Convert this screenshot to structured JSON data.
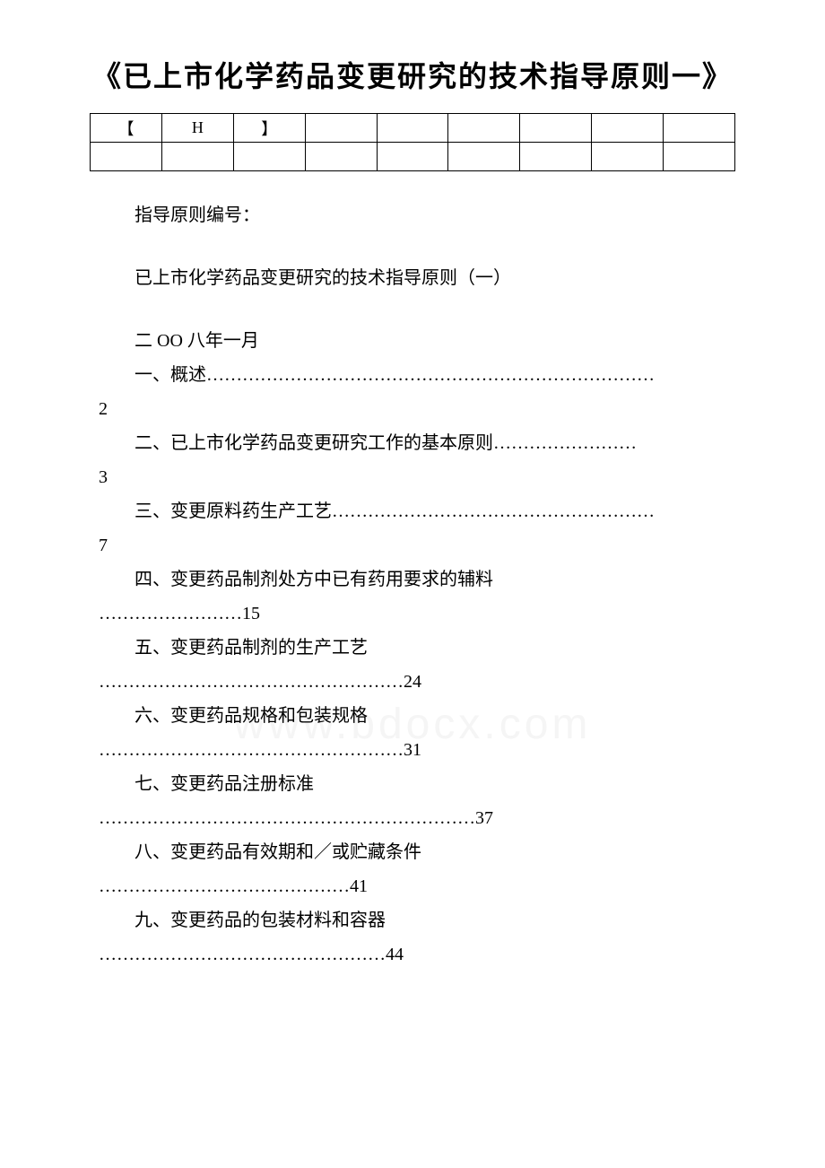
{
  "title": "《已上市化学药品变更研究的技术指导原则一》",
  "table": {
    "row1": [
      "【",
      "H",
      "】",
      "",
      "",
      "",
      "",
      "",
      ""
    ],
    "row2": [
      "",
      "",
      "",
      "",
      "",
      "",
      "",
      "",
      ""
    ]
  },
  "guideNumberLabel": "指导原则编号：",
  "subtitle": "已上市化学药品变更研究的技术指导原则（一）",
  "date": "二 OO 八年一月",
  "toc": [
    {
      "line": "一、概述…………………………………………………………………",
      "page": "2"
    },
    {
      "line": "二、已上市化学药品变更研究工作的基本原则……………………",
      "page": "3"
    },
    {
      "line": "三、变更原料药生产工艺………………………………………………",
      "page": "7"
    },
    {
      "line": "四、变更药品制剂处方中已有药用要求的辅料",
      "page": "……………………15"
    },
    {
      "line": "五、变更药品制剂的生产工艺",
      "page": "……………………………………………24"
    },
    {
      "line": "六、变更药品规格和包装规格",
      "page": "……………………………………………31"
    },
    {
      "line": "七、变更药品注册标准",
      "page": "………………………………………………………37"
    },
    {
      "line": "八、变更药品有效期和／或贮藏条件",
      "page": "……………………………………41"
    },
    {
      "line": "九、变更药品的包装材料和容器",
      "page": "…………………………………………44"
    }
  ],
  "watermark": "www.bdocx.com"
}
